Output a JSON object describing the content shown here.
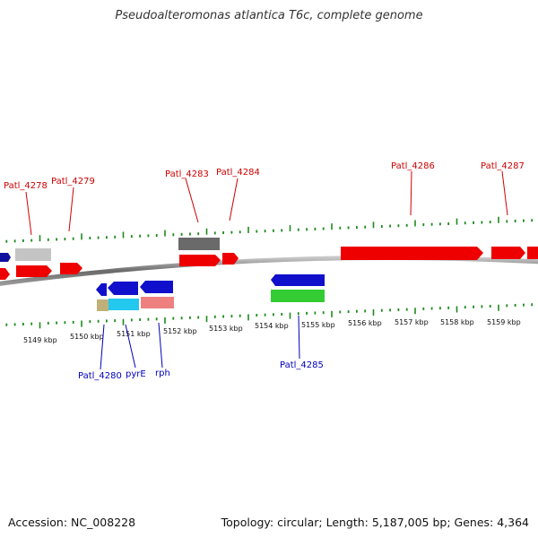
{
  "title": "Pseudoalteromonas atlantica T6c, complete genome",
  "footer": {
    "accession": "Accession: NC_008228",
    "summary": "Topology: circular; Length: 5,187,005 bp; Genes: 4,364"
  },
  "colors": {
    "backbone": "#8a8a8a",
    "tick": "#1e8a1e",
    "forward_label": "#cc0000",
    "reverse_label": "#0000bb"
  },
  "scale_labels": [
    "5149 kbp",
    "5150 kbp",
    "5151 kbp",
    "5152 kbp",
    "5153 kbp",
    "5154 kbp",
    "5155 kbp",
    "5156 kbp",
    "5157 kbp",
    "5158 kbp",
    "5159 kbp"
  ],
  "forward_labels": [
    "Patl_4278",
    "Patl_4279",
    "Patl_4283",
    "Patl_4284",
    "Patl_4286",
    "Patl_4287"
  ],
  "reverse_labels": [
    "Patl_4280",
    "pyrE",
    "rph",
    "Patl_4285"
  ]
}
